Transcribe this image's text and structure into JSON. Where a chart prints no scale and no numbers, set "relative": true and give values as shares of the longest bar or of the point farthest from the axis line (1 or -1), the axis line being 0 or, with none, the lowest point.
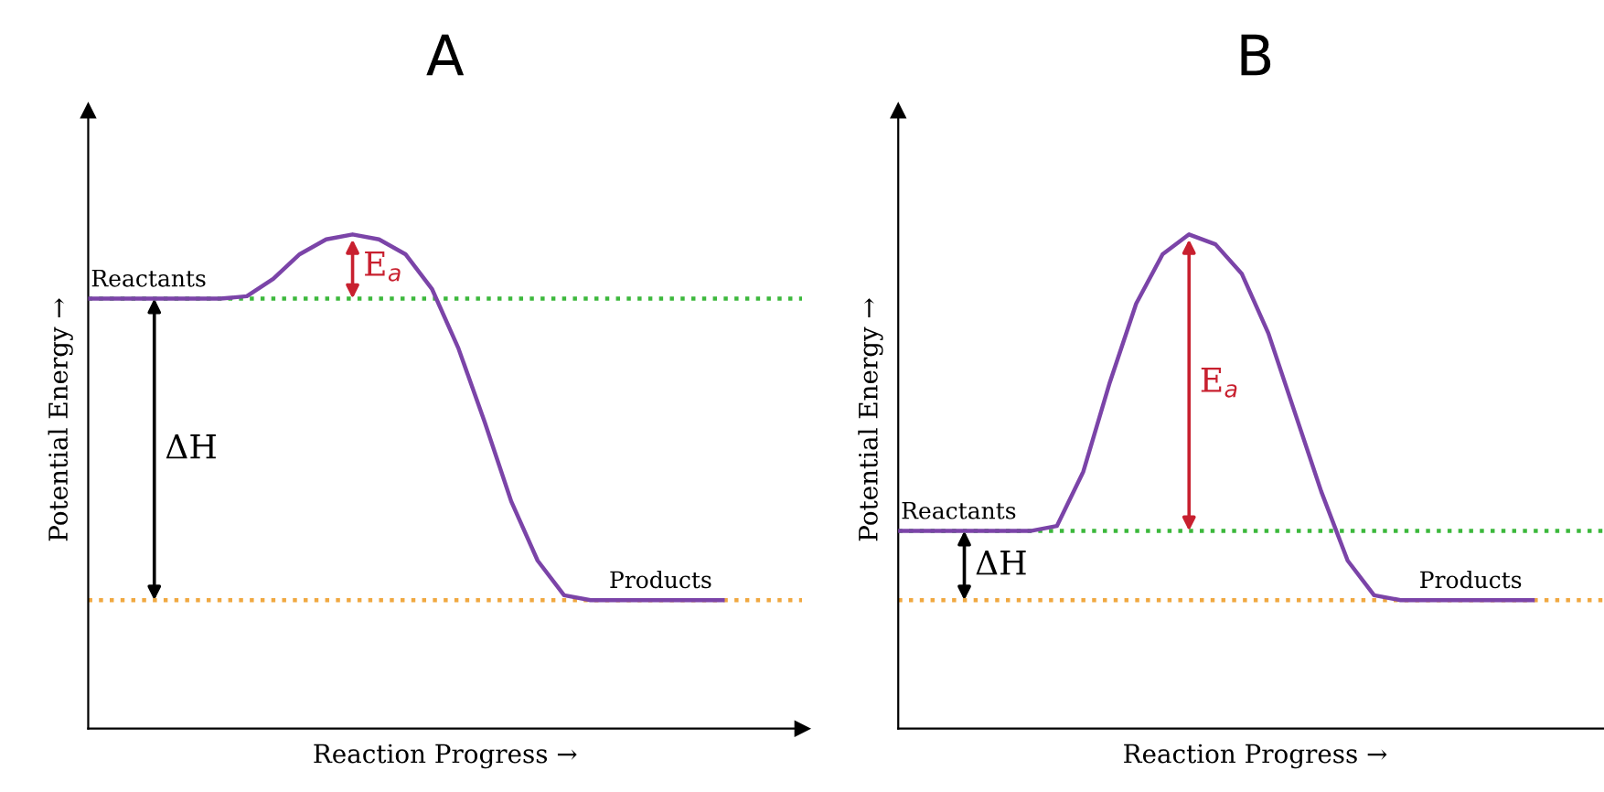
{
  "chart_data": [
    {
      "type": "line",
      "title": "A",
      "xlabel": "Reaction Progress →",
      "ylabel": "Potential Energy →",
      "relative": true,
      "tick_labels": false,
      "grid": false,
      "legend": false,
      "marker": "none",
      "line_style": "solid",
      "categories": [
        null,
        null,
        null,
        null,
        null,
        null,
        null,
        null,
        null,
        null,
        null,
        null,
        null,
        null,
        null,
        null,
        null,
        null,
        null,
        null,
        null,
        null,
        null,
        null,
        null
      ],
      "series": [
        {
          "color": "#7b44a8",
          "values": [
            0.87,
            0.87,
            0.87,
            0.87,
            0.87,
            0.87,
            0.875,
            0.91,
            0.96,
            0.99,
            1.0,
            0.99,
            0.96,
            0.89,
            0.77,
            0.62,
            0.46,
            0.34,
            0.27,
            0.26,
            0.26,
            0.26,
            0.26,
            0.26,
            0.26
          ]
        }
      ],
      "ref_lines": [
        {
          "axis": "y",
          "value": 0.87,
          "color": "#3cb83c",
          "line_style": "dotted"
        },
        {
          "axis": "y",
          "value": 0.26,
          "color": "#f0a840",
          "line_style": "dotted"
        }
      ],
      "annotations": [
        {
          "text": "Reactants",
          "y": 0.87
        },
        {
          "text": "Products",
          "y": 0.26
        },
        "ΔH",
        "E$_{a}$"
      ]
    },
    {
      "type": "line",
      "title": "B",
      "xlabel": "Reaction Progress →",
      "ylabel": "Potential Energy →",
      "relative": true,
      "tick_labels": false,
      "grid": false,
      "legend": false,
      "marker": "none",
      "line_style": "solid",
      "categories": [
        null,
        null,
        null,
        null,
        null,
        null,
        null,
        null,
        null,
        null,
        null,
        null,
        null,
        null,
        null,
        null,
        null,
        null,
        null,
        null,
        null,
        null,
        null,
        null,
        null
      ],
      "series": [
        {
          "color": "#7b44a8",
          "values": [
            0.4,
            0.4,
            0.4,
            0.4,
            0.4,
            0.4,
            0.41,
            0.52,
            0.7,
            0.86,
            0.96,
            1.0,
            0.98,
            0.92,
            0.8,
            0.64,
            0.48,
            0.34,
            0.27,
            0.26,
            0.26,
            0.26,
            0.26,
            0.26,
            0.26
          ]
        }
      ],
      "ref_lines": [
        {
          "axis": "y",
          "value": 0.4,
          "color": "#3cb83c",
          "line_style": "dotted"
        },
        {
          "axis": "y",
          "value": 0.26,
          "color": "#f0a840",
          "line_style": "dotted"
        }
      ],
      "annotations": [
        {
          "text": "Reactants",
          "y": 0.4
        },
        {
          "text": "Products",
          "y": 0.26
        },
        "ΔH",
        "E$_{a}$"
      ]
    }
  ]
}
